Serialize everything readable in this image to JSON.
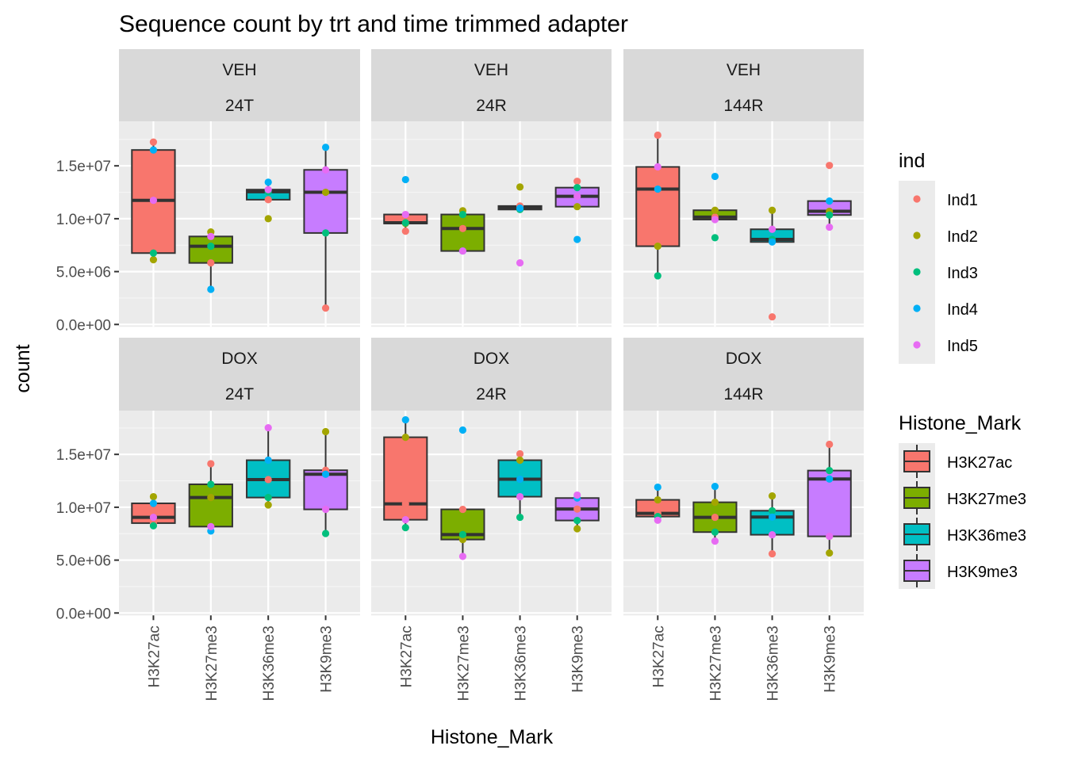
{
  "chart_data": {
    "type": "box",
    "title": "Sequence count by trt and time trimmed adapter",
    "xlabel": "Histone_Mark",
    "ylabel": "count",
    "ylim": [
      0,
      18500000
    ],
    "y_ticks": [
      0,
      5000000,
      10000000,
      15000000
    ],
    "y_tick_labels": [
      "0.0e+00",
      "5.0e+06",
      "1.0e+07",
      "1.5e+07"
    ],
    "grid": true,
    "categories": [
      "H3K27ac",
      "H3K27me3",
      "H3K36me3",
      "H3K9me3"
    ],
    "individuals": [
      "Ind1",
      "Ind2",
      "Ind3",
      "Ind4",
      "Ind5"
    ],
    "ind_colors": {
      "Ind1": "#F8766D",
      "Ind2": "#A3A500",
      "Ind3": "#00BF7D",
      "Ind4": "#00B0F6",
      "Ind5": "#E76BF3"
    },
    "mark_colors": {
      "H3K27ac": "#F8766D",
      "H3K27me3": "#7CAE00",
      "H3K36me3": "#00BFC4",
      "H3K9me3": "#C77CFF"
    },
    "legends": [
      {
        "title": "ind",
        "position": "right-top",
        "entries": [
          "Ind1",
          "Ind2",
          "Ind3",
          "Ind4",
          "Ind5"
        ]
      },
      {
        "title": "Histone_Mark",
        "position": "right-bottom",
        "entries": [
          "H3K27ac",
          "H3K27me3",
          "H3K36me3",
          "H3K9me3"
        ]
      }
    ],
    "facets": [
      {
        "trt": "VEH",
        "time": "24T",
        "values": {
          "H3K27ac": {
            "Ind1": 17250000,
            "Ind2": 6120000,
            "Ind3": 6750000,
            "Ind4": 16500000,
            "Ind5": 11740000
          },
          "H3K27me3": {
            "Ind1": 5820000,
            "Ind2": 8750000,
            "Ind3": 7400000,
            "Ind4": 3320000,
            "Ind5": 8320000
          },
          "H3K36me3": {
            "Ind1": 11800000,
            "Ind2": 10000000,
            "Ind3": 12550000,
            "Ind4": 13450000,
            "Ind5": 12750000
          },
          "H3K9me3": {
            "Ind1": 1550000,
            "Ind2": 12500000,
            "Ind3": 8650000,
            "Ind4": 16750000,
            "Ind5": 14620000
          }
        }
      },
      {
        "trt": "VEH",
        "time": "24R",
        "values": {
          "H3K27ac": {
            "Ind1": 8820000,
            "Ind2": 9550000,
            "Ind3": 9620000,
            "Ind4": 13700000,
            "Ind5": 10400000
          },
          "H3K27me3": {
            "Ind1": 9070000,
            "Ind2": 10750000,
            "Ind3": 10400000,
            "Ind4": 6950000,
            "Ind5": 6950000
          },
          "H3K36me3": {
            "Ind1": 11200000,
            "Ind2": 13000000,
            "Ind3": 10870000,
            "Ind4": 11000000,
            "Ind5": 5820000
          },
          "H3K9me3": {
            "Ind1": 13540000,
            "Ind2": 11140000,
            "Ind3": 12940000,
            "Ind4": 8040000,
            "Ind5": 12120000
          }
        }
      },
      {
        "trt": "VEH",
        "time": "144R",
        "values": {
          "H3K27ac": {
            "Ind1": 17900000,
            "Ind2": 7400000,
            "Ind3": 4600000,
            "Ind4": 12800000,
            "Ind5": 14900000
          },
          "H3K27me3": {
            "Ind1": 10150000,
            "Ind2": 10800000,
            "Ind3": 8200000,
            "Ind4": 14000000,
            "Ind5": 9920000
          },
          "H3K36me3": {
            "Ind1": 720000,
            "Ind2": 10800000,
            "Ind3": 8040000,
            "Ind4": 7800000,
            "Ind5": 9000000
          },
          "H3K9me3": {
            "Ind1": 15040000,
            "Ind2": 10700000,
            "Ind3": 10350000,
            "Ind4": 11670000,
            "Ind5": 9200000
          }
        }
      },
      {
        "trt": "DOX",
        "time": "24T",
        "values": {
          "H3K27ac": {
            "Ind1": 8500000,
            "Ind2": 11000000,
            "Ind3": 8250000,
            "Ind4": 10370000,
            "Ind5": 9050000
          },
          "H3K27me3": {
            "Ind1": 14120000,
            "Ind2": 10920000,
            "Ind3": 12170000,
            "Ind4": 7750000,
            "Ind5": 8170000
          },
          "H3K36me3": {
            "Ind1": 12620000,
            "Ind2": 10220000,
            "Ind3": 10920000,
            "Ind4": 14450000,
            "Ind5": 17520000
          },
          "H3K9me3": {
            "Ind1": 13500000,
            "Ind2": 17150000,
            "Ind3": 7520000,
            "Ind4": 13120000,
            "Ind5": 9800000
          }
        }
      },
      {
        "trt": "DOX",
        "time": "24R",
        "values": {
          "H3K27ac": {
            "Ind1": 10320000,
            "Ind2": 16620000,
            "Ind3": 8070000,
            "Ind4": 18270000,
            "Ind5": 8820000
          },
          "H3K27me3": {
            "Ind1": 9800000,
            "Ind2": 6950000,
            "Ind3": 7420000,
            "Ind4": 17300000,
            "Ind5": 5350000
          },
          "H3K36me3": {
            "Ind1": 15050000,
            "Ind2": 14450000,
            "Ind3": 9050000,
            "Ind4": 12650000,
            "Ind5": 11000000
          },
          "H3K9me3": {
            "Ind1": 9830000,
            "Ind2": 7970000,
            "Ind3": 8750000,
            "Ind4": 10870000,
            "Ind5": 11150000
          }
        }
      },
      {
        "trt": "DOX",
        "time": "144R",
        "values": {
          "H3K27ac": {
            "Ind1": 9420000,
            "Ind2": 10700000,
            "Ind3": 9120000,
            "Ind4": 11900000,
            "Ind5": 8770000
          },
          "H3K27me3": {
            "Ind1": 9050000,
            "Ind2": 10470000,
            "Ind3": 7650000,
            "Ind4": 11970000,
            "Ind5": 6800000
          },
          "H3K36me3": {
            "Ind1": 5600000,
            "Ind2": 11070000,
            "Ind3": 9670000,
            "Ind4": 9070000,
            "Ind5": 7400000
          },
          "H3K9me3": {
            "Ind1": 15950000,
            "Ind2": 5670000,
            "Ind3": 13470000,
            "Ind4": 12670000,
            "Ind5": 7250000
          }
        }
      }
    ]
  }
}
